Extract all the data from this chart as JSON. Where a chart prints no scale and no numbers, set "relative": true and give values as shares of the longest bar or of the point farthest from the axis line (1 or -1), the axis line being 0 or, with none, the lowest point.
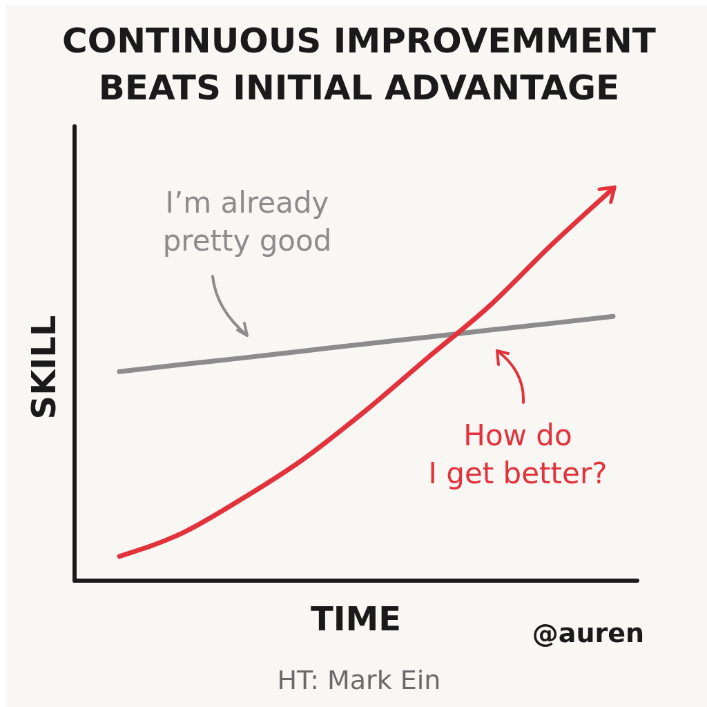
{
  "chart_data": {
    "type": "line",
    "relative": true,
    "title": "CONTINUOUS IMPROVEMMENT\nBEATS INITIAL ADVANTAGE",
    "xlabel": "TIME",
    "ylabel": "SKILL",
    "categories": [
      null,
      null,
      null,
      null,
      null,
      null,
      null,
      null,
      null
    ],
    "series": [
      {
        "color": "#8c8c8c",
        "values": [
          0.533,
          0.551,
          0.568,
          0.586,
          0.604,
          0.621,
          0.639,
          0.656,
          0.674
        ]
      },
      {
        "color": "#e2323c",
        "values": [
          0.062,
          0.12,
          0.21,
          0.312,
          0.435,
          0.569,
          0.701,
          0.856,
          1
        ]
      }
    ],
    "grid": false,
    "marker": "none",
    "line_style": "solid",
    "annotations": [
      "I’m already\npretty good",
      "How do\nI get better?",
      "@auren",
      "HT: Mark Ein"
    ]
  }
}
